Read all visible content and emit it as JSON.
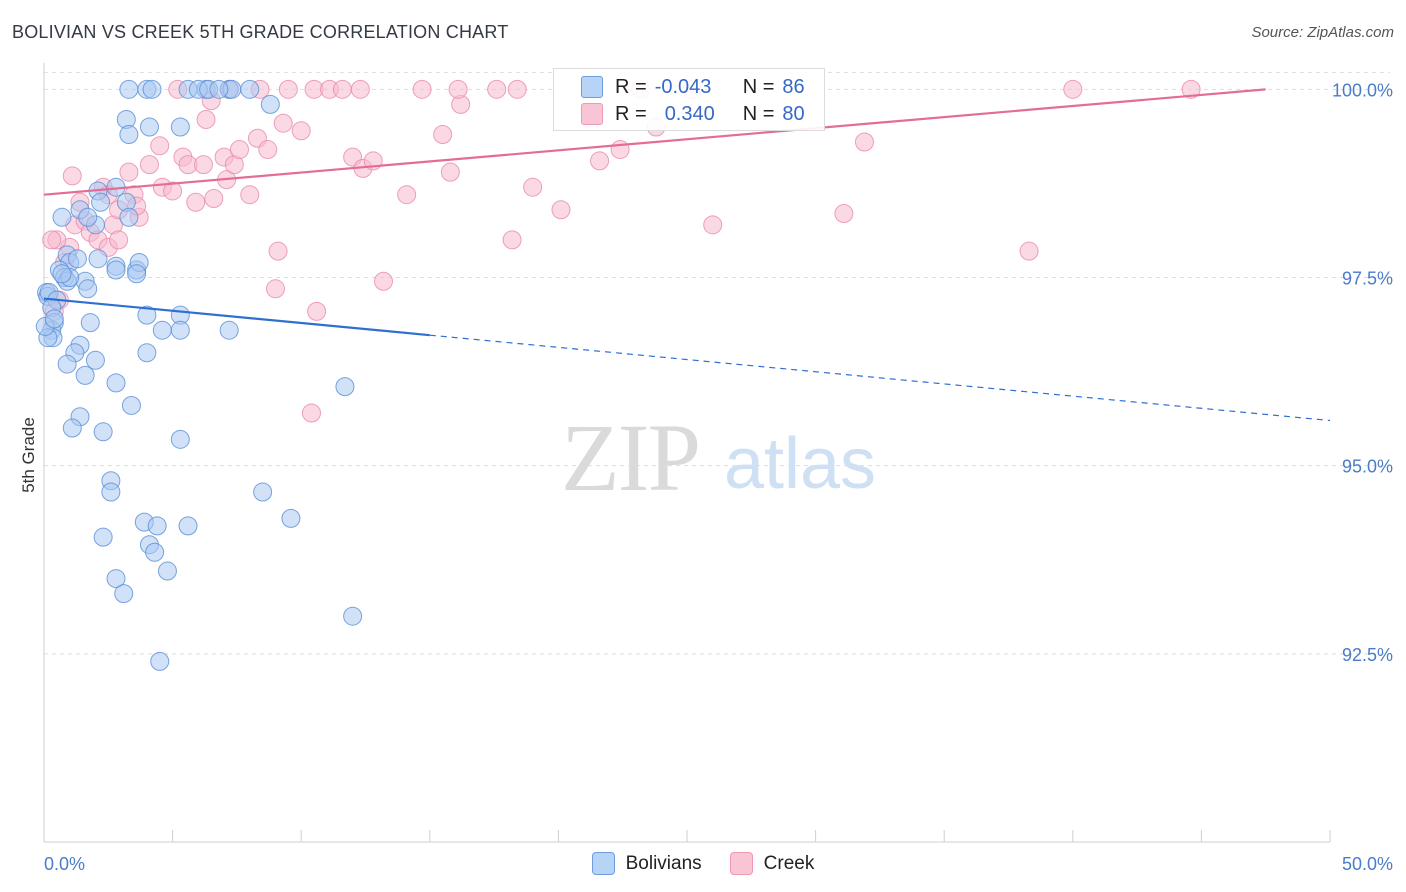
{
  "header": {
    "title": "BOLIVIAN VS CREEK 5TH GRADE CORRELATION CHART",
    "source": "Source: ZipAtlas.com"
  },
  "watermark": {
    "zip": "ZIP",
    "atlas": "atlas"
  },
  "legend": {
    "rows": [
      {
        "r_label": "R =",
        "r_value": "-0.043",
        "n_label": "N =",
        "n_value": "86"
      },
      {
        "r_label": "R =",
        "r_value": "0.340",
        "n_label": "N =",
        "n_value": "80"
      }
    ],
    "bottom": [
      "Bolivians",
      "Creek"
    ]
  },
  "colors": {
    "bolivians_fill": "#a9c9f3",
    "bolivians_stroke": "#5a8fd6",
    "bolivians_line": "#2f6fd0",
    "creek_fill": "#f7b9cd",
    "creek_stroke": "#e98aab",
    "creek_line": "#e46d96",
    "tick_text": "#4a7cc9",
    "grid": "#dddddd"
  },
  "chart_data": {
    "type": "scatter",
    "title": "BOLIVIAN VS CREEK 5TH GRADE CORRELATION CHART",
    "xlabel": "",
    "ylabel": "5th Grade",
    "xlim": [
      0,
      50
    ],
    "ylim": [
      90.0,
      100.35
    ],
    "x_tick_labels": [
      "0.0%",
      "50.0%"
    ],
    "y_ticks": [
      92.5,
      95.0,
      97.5,
      100.0
    ],
    "y_tick_labels": [
      "92.5%",
      "95.0%",
      "97.5%",
      "100.0%"
    ],
    "series": [
      {
        "name": "Bolivians",
        "R": -0.043,
        "N": 86,
        "trend": {
          "x0": 0,
          "y0": 97.22,
          "x_solid_end": 15,
          "x1": 50,
          "y1": 95.6
        },
        "points": [
          [
            3.3,
            100.0
          ],
          [
            4.0,
            100.0
          ],
          [
            4.2,
            100.0
          ],
          [
            5.6,
            100.0
          ],
          [
            6.3,
            100.0
          ],
          [
            6.0,
            100.0
          ],
          [
            6.4,
            100.0
          ],
          [
            7.2,
            100.0
          ],
          [
            7.3,
            100.0
          ],
          [
            8.0,
            100.0
          ],
          [
            8.8,
            99.8
          ],
          [
            3.2,
            99.6
          ],
          [
            4.1,
            99.5
          ],
          [
            5.3,
            99.5
          ],
          [
            3.3,
            99.4
          ],
          [
            2.8,
            98.7
          ],
          [
            2.1,
            98.65
          ],
          [
            3.2,
            98.5
          ],
          [
            3.3,
            98.3
          ],
          [
            1.4,
            98.4
          ],
          [
            2.0,
            98.2
          ],
          [
            1.7,
            98.3
          ],
          [
            0.9,
            97.8
          ],
          [
            1.0,
            97.7
          ],
          [
            1.3,
            97.75
          ],
          [
            2.1,
            97.75
          ],
          [
            2.8,
            97.65
          ],
          [
            2.8,
            97.6
          ],
          [
            3.6,
            97.6
          ],
          [
            3.7,
            97.7
          ],
          [
            0.6,
            97.6
          ],
          [
            0.8,
            97.5
          ],
          [
            1.6,
            97.45
          ],
          [
            0.9,
            97.45
          ],
          [
            1.7,
            97.35
          ],
          [
            0.1,
            97.3
          ],
          [
            0.15,
            97.25
          ],
          [
            0.2,
            97.3
          ],
          [
            0.5,
            97.2
          ],
          [
            0.3,
            97.1
          ],
          [
            0.4,
            96.9
          ],
          [
            0.3,
            96.8
          ],
          [
            0.35,
            96.7
          ],
          [
            0.15,
            96.7
          ],
          [
            0.05,
            96.85
          ],
          [
            1.8,
            96.9
          ],
          [
            4.0,
            97.0
          ],
          [
            5.3,
            97.0
          ],
          [
            4.6,
            96.8
          ],
          [
            5.3,
            96.8
          ],
          [
            7.2,
            96.8
          ],
          [
            1.4,
            96.6
          ],
          [
            1.2,
            96.5
          ],
          [
            2.0,
            96.4
          ],
          [
            0.9,
            96.35
          ],
          [
            1.6,
            96.2
          ],
          [
            4.0,
            96.5
          ],
          [
            2.8,
            96.1
          ],
          [
            11.7,
            96.05
          ],
          [
            3.4,
            95.8
          ],
          [
            1.4,
            95.65
          ],
          [
            1.1,
            95.5
          ],
          [
            2.3,
            95.45
          ],
          [
            5.3,
            95.35
          ],
          [
            2.6,
            94.8
          ],
          [
            2.6,
            94.65
          ],
          [
            8.5,
            94.65
          ],
          [
            3.9,
            94.25
          ],
          [
            9.6,
            94.3
          ],
          [
            4.4,
            94.2
          ],
          [
            5.6,
            94.2
          ],
          [
            2.3,
            94.05
          ],
          [
            4.1,
            93.95
          ],
          [
            4.3,
            93.85
          ],
          [
            4.8,
            93.6
          ],
          [
            2.8,
            93.5
          ],
          [
            3.1,
            93.3
          ],
          [
            12.0,
            93.0
          ],
          [
            4.5,
            92.4
          ],
          [
            0.4,
            96.95
          ],
          [
            1.0,
            97.5
          ],
          [
            0.7,
            98.3
          ],
          [
            2.2,
            98.5
          ],
          [
            3.6,
            97.55
          ],
          [
            6.8,
            100.0
          ],
          [
            0.7,
            97.55
          ]
        ]
      },
      {
        "name": "Creek",
        "R": 0.34,
        "N": 80,
        "trend": {
          "x0": 0,
          "y0": 98.6,
          "x1": 47.5,
          "y1": 100.0
        },
        "points": [
          [
            0.8,
            97.7
          ],
          [
            1.0,
            97.9
          ],
          [
            0.5,
            98.0
          ],
          [
            1.2,
            98.2
          ],
          [
            1.6,
            98.25
          ],
          [
            1.8,
            98.1
          ],
          [
            2.1,
            98.0
          ],
          [
            2.5,
            97.9
          ],
          [
            2.7,
            98.2
          ],
          [
            2.9,
            98.0
          ],
          [
            1.4,
            98.5
          ],
          [
            2.3,
            98.7
          ],
          [
            2.9,
            98.4
          ],
          [
            3.3,
            98.9
          ],
          [
            3.5,
            98.6
          ],
          [
            3.7,
            98.3
          ],
          [
            4.1,
            99.0
          ],
          [
            4.5,
            99.25
          ],
          [
            4.6,
            98.7
          ],
          [
            5.0,
            98.65
          ],
          [
            5.4,
            99.1
          ],
          [
            5.6,
            99.0
          ],
          [
            5.9,
            98.5
          ],
          [
            6.2,
            99.0
          ],
          [
            6.3,
            99.6
          ],
          [
            6.5,
            99.85
          ],
          [
            6.6,
            98.55
          ],
          [
            7.0,
            99.1
          ],
          [
            7.1,
            98.8
          ],
          [
            7.4,
            99.0
          ],
          [
            7.6,
            99.2
          ],
          [
            8.0,
            98.6
          ],
          [
            8.3,
            99.35
          ],
          [
            8.7,
            99.2
          ],
          [
            9.1,
            97.85
          ],
          [
            9.3,
            99.55
          ],
          [
            10.0,
            99.45
          ],
          [
            10.5,
            100.0
          ],
          [
            10.6,
            97.05
          ],
          [
            11.1,
            100.0
          ],
          [
            11.6,
            100.0
          ],
          [
            12.0,
            99.1
          ],
          [
            12.4,
            98.95
          ],
          [
            12.8,
            99.05
          ],
          [
            13.2,
            97.45
          ],
          [
            14.1,
            98.6
          ],
          [
            14.7,
            100.0
          ],
          [
            15.5,
            99.4
          ],
          [
            15.8,
            98.9
          ],
          [
            16.2,
            99.8
          ],
          [
            17.6,
            100.0
          ],
          [
            18.2,
            98.0
          ],
          [
            19.0,
            98.7
          ],
          [
            20.1,
            98.4
          ],
          [
            21.6,
            99.05
          ],
          [
            22.4,
            99.2
          ],
          [
            23.2,
            100.0
          ],
          [
            23.8,
            99.5
          ],
          [
            25.2,
            100.0
          ],
          [
            26.0,
            98.2
          ],
          [
            31.1,
            98.35
          ],
          [
            31.9,
            99.3
          ],
          [
            38.3,
            97.85
          ],
          [
            40.0,
            100.0
          ],
          [
            44.6,
            100.0
          ],
          [
            9.0,
            97.35
          ],
          [
            10.4,
            95.7
          ],
          [
            7.2,
            100.0
          ],
          [
            12.3,
            100.0
          ],
          [
            16.1,
            100.0
          ],
          [
            18.4,
            100.0
          ],
          [
            0.3,
            98.0
          ],
          [
            0.6,
            97.2
          ],
          [
            0.4,
            97.05
          ],
          [
            1.1,
            98.85
          ],
          [
            5.2,
            100.0
          ],
          [
            9.5,
            100.0
          ],
          [
            8.4,
            100.0
          ],
          [
            3.6,
            98.45
          ],
          [
            2.5,
            98.6
          ]
        ]
      }
    ]
  }
}
